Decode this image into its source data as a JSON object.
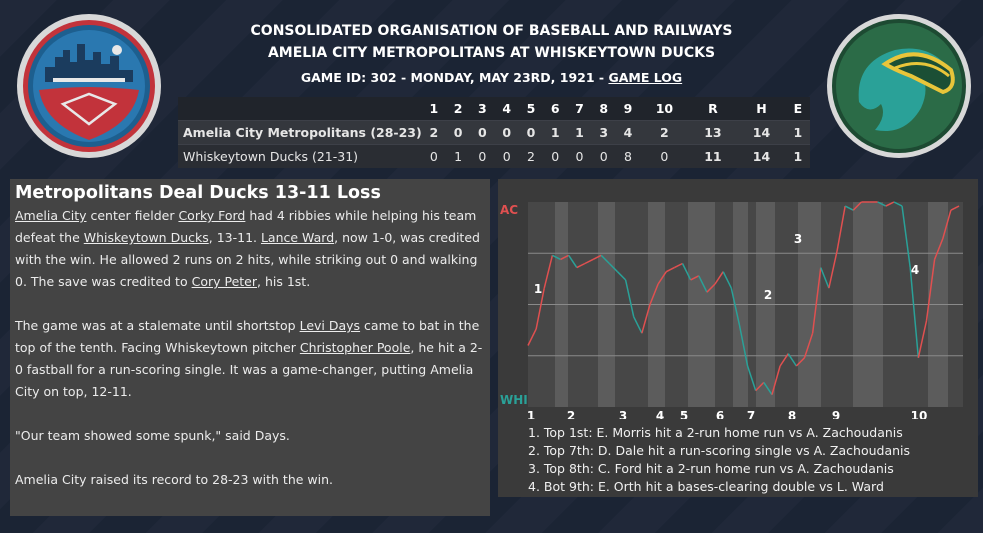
{
  "header": {
    "league": "CONSOLIDATED ORGANISATION OF BASEBALL AND RAILWAYS",
    "matchup": "AMELIA CITY METROPOLITANS AT WHISKEYTOWN DUCKS",
    "game_info": "GAME ID: 302 - MONDAY, MAY 23RD, 1921 - ",
    "game_log_link": "GAME LOG"
  },
  "linescore": {
    "headers": [
      "1",
      "2",
      "3",
      "4",
      "5",
      "6",
      "7",
      "8",
      "9",
      "10",
      "R",
      "H",
      "E"
    ],
    "rows": [
      {
        "team": "Amelia City Metropolitans (28-23)",
        "innings": [
          "2",
          "0",
          "0",
          "0",
          "0",
          "1",
          "1",
          "3",
          "4",
          "2"
        ],
        "r": "13",
        "h": "14",
        "e": "1"
      },
      {
        "team": "Whiskeytown Ducks (21-31)",
        "innings": [
          "0",
          "1",
          "0",
          "0",
          "2",
          "0",
          "0",
          "0",
          "8",
          "0"
        ],
        "r": "11",
        "h": "14",
        "e": "1"
      }
    ]
  },
  "story": {
    "headline": "Metropolitans Deal Ducks 13-11 Loss",
    "p1": {
      "team1": "Amelia City",
      "t1": " center fielder ",
      "player1": "Corky Ford",
      "t2": " had 4 ribbies while helping his team defeat the ",
      "team2": "Whiskeytown Ducks",
      "t3": ", 13-11. ",
      "player2": "Lance Ward",
      "t4": ", now 1-0, was credited with the win. He allowed 2 runs on 2 hits, while striking out 0 and walking 0. The save was credited to ",
      "player3": "Cory Peter",
      "t5": ", his 1st."
    },
    "p2": {
      "t1": "The game was at a stalemate until shortstop ",
      "player1": "Levi Days",
      "t2": " came to bat in the top of the tenth. Facing Whiskeytown pitcher ",
      "player2": "Christopher Poole",
      "t3": ", he hit a 2-0 fastball for a run-scoring single. It was a game-changer, putting Amelia City on top, 12-11."
    },
    "p3": "\"Our team showed some spunk,\" said Days.",
    "p4": "Amelia City raised its record to 28-23 with the win."
  },
  "chart_data": {
    "type": "line",
    "title": "",
    "y_top_label": "AC",
    "y_bottom_label": "WHI",
    "innings": [
      "1",
      "2",
      "3",
      "4",
      "5",
      "6",
      "7",
      "8",
      "9",
      "10"
    ],
    "series": [
      {
        "values": [
          0.3,
          0.38,
          0.58,
          0.74,
          0.72,
          0.74,
          0.68,
          0.7,
          0.72,
          0.74,
          0.7,
          0.66,
          0.62,
          0.44,
          0.36,
          0.5,
          0.6,
          0.66,
          0.68,
          0.7,
          0.62,
          0.64,
          0.56,
          0.6,
          0.66,
          0.58,
          0.4,
          0.2,
          0.08,
          0.12,
          0.06,
          0.2,
          0.26,
          0.2,
          0.24,
          0.36,
          0.68,
          0.58,
          0.76,
          0.98,
          0.96,
          1.0,
          1.0,
          1.0,
          0.98,
          1.0,
          0.98,
          0.68,
          0.24,
          0.42,
          0.72,
          0.82,
          0.96,
          0.98
        ]
      }
    ],
    "annotations": [
      "1",
      "2",
      "3",
      "4"
    ],
    "ylim": [
      -1,
      1
    ]
  },
  "notes": [
    "1. Top 1st: E. Morris hit a 2-run home run vs A. Zachoudanis",
    "2. Top 7th: D. Dale hit a run-scoring single vs A. Zachoudanis",
    "3. Top 8th: C. Ford hit a 2-run home run vs A. Zachoudanis",
    "4. Bot 9th: E. Orth hit a bases-clearing double vs L. Ward"
  ],
  "colors": {
    "away": "#e05050",
    "home": "#2aa198"
  }
}
